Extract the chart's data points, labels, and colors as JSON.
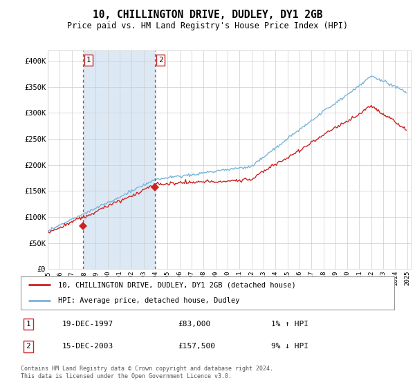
{
  "title": "10, CHILLINGTON DRIVE, DUDLEY, DY1 2GB",
  "subtitle": "Price paid vs. HM Land Registry's House Price Index (HPI)",
  "hpi_label": "HPI: Average price, detached house, Dudley",
  "property_label": "10, CHILLINGTON DRIVE, DUDLEY, DY1 2GB (detached house)",
  "footer": "Contains HM Land Registry data © Crown copyright and database right 2024.\nThis data is licensed under the Open Government Licence v3.0.",
  "sale1_date": "19-DEC-1997",
  "sale1_price": 83000,
  "sale1_hpi": "1% ↑ HPI",
  "sale2_date": "15-DEC-2003",
  "sale2_price": 157500,
  "sale2_hpi": "9% ↓ HPI",
  "ylim": [
    0,
    420000
  ],
  "yticks": [
    0,
    50000,
    100000,
    150000,
    200000,
    250000,
    300000,
    350000,
    400000
  ],
  "ytick_labels": [
    "£0",
    "£50K",
    "£100K",
    "£150K",
    "£200K",
    "£250K",
    "£300K",
    "£350K",
    "£400K"
  ],
  "hpi_color": "#7ab4d8",
  "property_color": "#cc2222",
  "sale_marker_color": "#cc2222",
  "shading_color": "#dce9f5",
  "grid_color": "#cccccc",
  "background_color": "#ffffff",
  "sale1_x": 1997.917,
  "sale2_x": 2003.917
}
